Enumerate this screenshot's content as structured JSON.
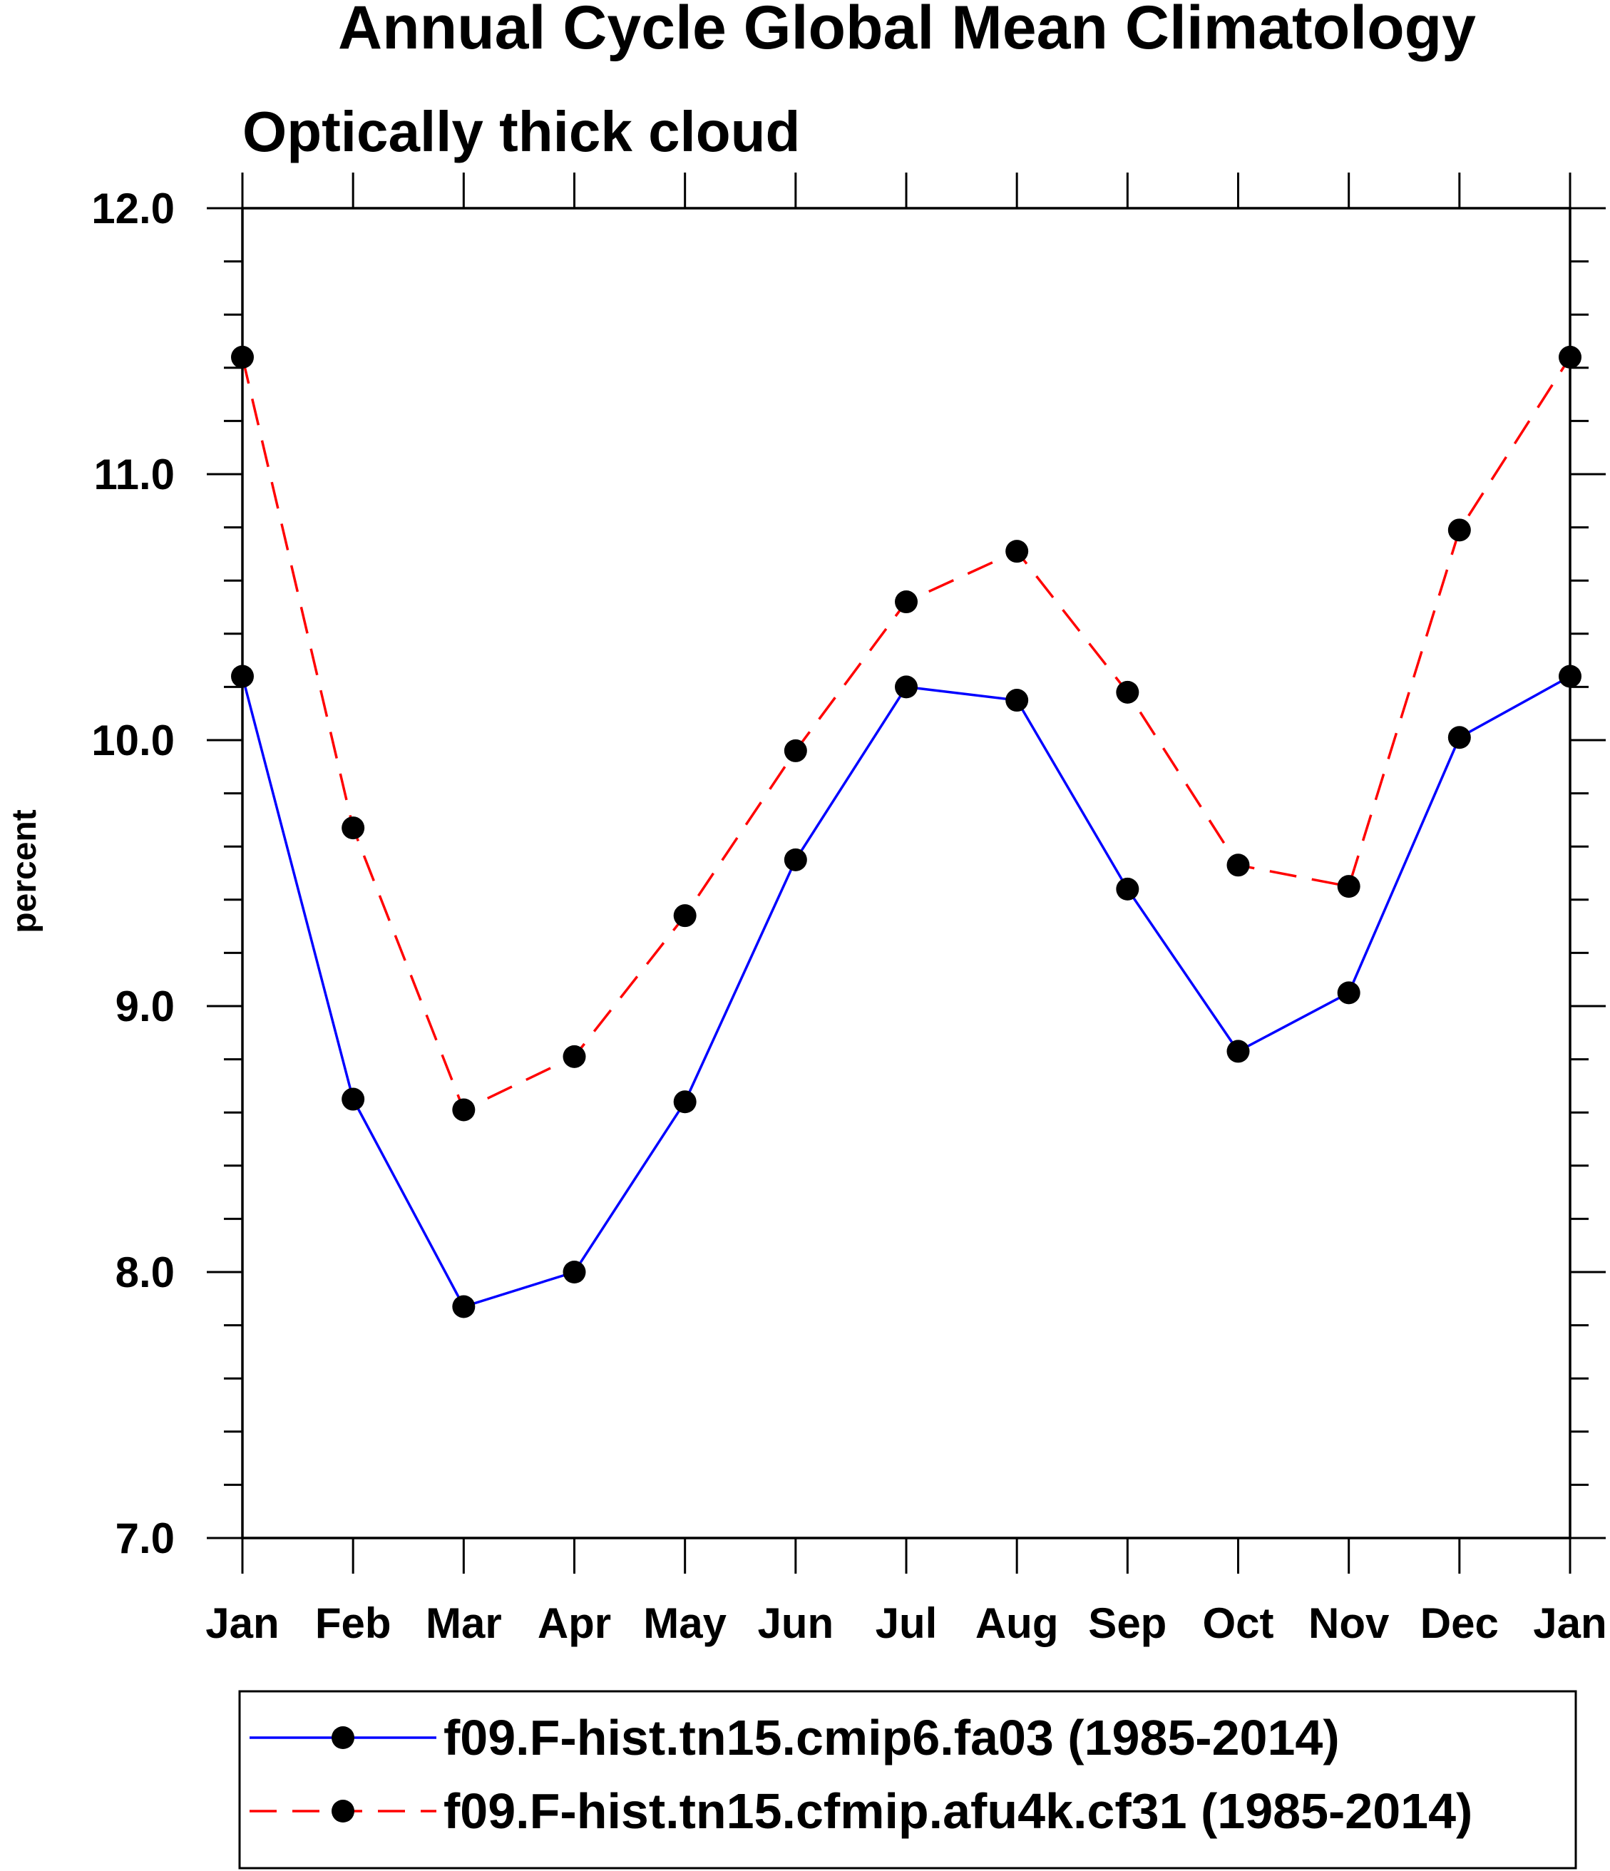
{
  "title": "Annual Cycle Global Mean Climatology",
  "subtitle": "Optically thick cloud",
  "chart_data": {
    "type": "line",
    "title": "Annual Cycle Global Mean Climatology",
    "subtitle": "Optically thick cloud",
    "xlabel": "",
    "ylabel": "percent",
    "categories": [
      "Jan",
      "Feb",
      "Mar",
      "Apr",
      "May",
      "Jun",
      "Jul",
      "Aug",
      "Sep",
      "Oct",
      "Nov",
      "Dec",
      "Jan"
    ],
    "ylim": [
      7.0,
      12.0
    ],
    "yticks": [
      "7.0",
      "8.0",
      "9.0",
      "10.0",
      "11.0",
      "12.0"
    ],
    "grid": false,
    "legend_position": "bottom",
    "series": [
      {
        "name": "f09.F-hist.tn15.cmip6.fa03 (1985-2014)",
        "color": "#0000ff",
        "line_style": "solid",
        "marker": "filled-circle",
        "values": [
          10.24,
          8.65,
          7.87,
          8.0,
          8.64,
          9.55,
          10.2,
          10.15,
          9.44,
          8.83,
          9.05,
          10.01,
          10.24
        ]
      },
      {
        "name": "f09.F-hist.tn15.cfmip.afu4k.cf31 (1985-2014)",
        "color": "#ff0000",
        "line_style": "dashed",
        "marker": "filled-circle",
        "values": [
          11.44,
          9.67,
          8.61,
          8.81,
          9.34,
          9.96,
          10.52,
          10.71,
          10.18,
          9.53,
          9.45,
          10.79,
          11.44
        ]
      }
    ]
  }
}
